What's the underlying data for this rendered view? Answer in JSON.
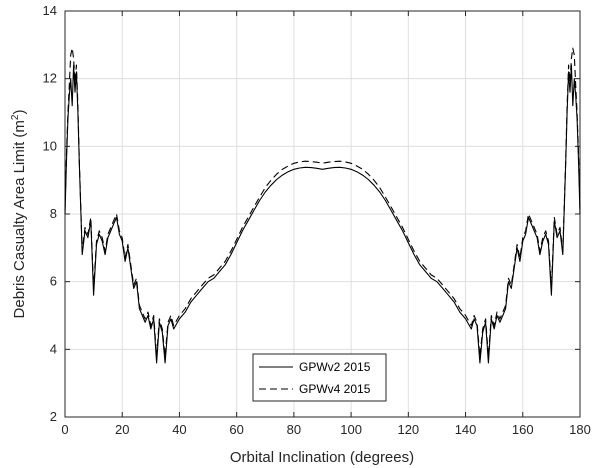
{
  "chart_data": {
    "type": "line",
    "xlabel": "Orbital Inclination (degrees)",
    "ylabel": "Debris Casualty Area Limit (m",
    "ylabel_sup": "2",
    "ylabel_close": ")",
    "xlim": [
      0,
      180
    ],
    "ylim": [
      2,
      14
    ],
    "xticks": [
      "0",
      "20",
      "40",
      "60",
      "80",
      "100",
      "120",
      "140",
      "160",
      "180"
    ],
    "yticks": [
      "2",
      "4",
      "6",
      "8",
      "10",
      "12",
      "14"
    ],
    "grid": true,
    "legend_position": "bottom-center",
    "series": [
      {
        "name": "GPWv2 2015",
        "style": "solid",
        "color": "#000000",
        "x": [
          0,
          0.5,
          1,
          1.5,
          2,
          2.5,
          3,
          3.5,
          4,
          4.5,
          5,
          5.5,
          6,
          7,
          8,
          9,
          10,
          11,
          12,
          13,
          14,
          15,
          16,
          17,
          18,
          19,
          20,
          21,
          22,
          23,
          24,
          25,
          26,
          27,
          28,
          29,
          30,
          31,
          32,
          33,
          34,
          35,
          36,
          37,
          38,
          40,
          42,
          44,
          46,
          48,
          50,
          52,
          54,
          56,
          58,
          60,
          62,
          64,
          66,
          68,
          70,
          72,
          74,
          76,
          78,
          80,
          82,
          84,
          86,
          88,
          90,
          92,
          94,
          96,
          98,
          100,
          102,
          104,
          106,
          108,
          110,
          112,
          114,
          116,
          118,
          120,
          122,
          124,
          126,
          128,
          130,
          132,
          134,
          136,
          138,
          140,
          142,
          143,
          144,
          145,
          146,
          147,
          148,
          149,
          150,
          151,
          152,
          153,
          154,
          155,
          156,
          157,
          158,
          159,
          160,
          161,
          162,
          163,
          164,
          165,
          166,
          167,
          168,
          169,
          170,
          171,
          172,
          173,
          174,
          174.5,
          175,
          175.5,
          176,
          176.5,
          177,
          177.5,
          178,
          178.5,
          179,
          179.5,
          180
        ],
        "y": [
          8.0,
          9.5,
          10.8,
          11.5,
          12.0,
          11.2,
          12.4,
          11.6,
          12.2,
          11.0,
          9.5,
          8.2,
          6.8,
          7.5,
          7.3,
          7.8,
          5.6,
          7.1,
          7.4,
          7.2,
          6.8,
          7.3,
          7.5,
          7.7,
          7.9,
          7.4,
          7.2,
          6.6,
          7.0,
          6.4,
          5.8,
          6.0,
          5.2,
          5.0,
          4.8,
          5.0,
          4.6,
          4.9,
          3.6,
          4.8,
          4.5,
          3.6,
          4.7,
          4.9,
          4.6,
          4.9,
          5.1,
          5.4,
          5.6,
          5.8,
          6.0,
          6.1,
          6.3,
          6.5,
          6.8,
          7.15,
          7.5,
          7.8,
          8.1,
          8.4,
          8.65,
          8.85,
          9.02,
          9.15,
          9.25,
          9.32,
          9.36,
          9.38,
          9.37,
          9.35,
          9.32,
          9.35,
          9.37,
          9.38,
          9.36,
          9.32,
          9.25,
          9.15,
          9.02,
          8.85,
          8.65,
          8.4,
          8.1,
          7.8,
          7.5,
          7.15,
          6.8,
          6.5,
          6.3,
          6.1,
          6.0,
          5.8,
          5.6,
          5.4,
          5.1,
          4.9,
          4.6,
          4.9,
          4.7,
          3.6,
          4.5,
          4.8,
          3.6,
          4.9,
          4.6,
          5.0,
          4.8,
          5.0,
          5.2,
          6.0,
          5.8,
          6.4,
          7.0,
          6.6,
          7.2,
          7.4,
          7.9,
          7.7,
          7.5,
          7.3,
          6.8,
          7.2,
          7.4,
          7.1,
          5.6,
          7.8,
          7.3,
          7.5,
          6.8,
          8.2,
          9.5,
          11.0,
          12.2,
          11.6,
          12.4,
          11.2,
          12.0,
          11.5,
          10.8,
          9.5,
          8.0
        ]
      },
      {
        "name": "GPWv4 2015",
        "style": "dashed",
        "color": "#000000",
        "x": [
          0,
          0.5,
          1,
          1.5,
          2,
          2.5,
          3,
          3.5,
          4,
          4.5,
          5,
          5.5,
          6,
          7,
          8,
          9,
          10,
          11,
          12,
          13,
          14,
          15,
          16,
          17,
          18,
          19,
          20,
          21,
          22,
          23,
          24,
          25,
          26,
          27,
          28,
          29,
          30,
          31,
          32,
          33,
          34,
          35,
          36,
          37,
          38,
          40,
          42,
          44,
          46,
          48,
          50,
          52,
          54,
          56,
          58,
          60,
          62,
          64,
          66,
          68,
          70,
          72,
          74,
          76,
          78,
          80,
          82,
          84,
          86,
          88,
          90,
          92,
          94,
          96,
          98,
          100,
          102,
          104,
          106,
          108,
          110,
          112,
          114,
          116,
          118,
          120,
          122,
          124,
          126,
          128,
          130,
          132,
          134,
          136,
          138,
          140,
          142,
          143,
          144,
          145,
          146,
          147,
          148,
          149,
          150,
          151,
          152,
          153,
          154,
          155,
          156,
          157,
          158,
          159,
          160,
          161,
          162,
          163,
          164,
          165,
          166,
          167,
          168,
          169,
          170,
          171,
          172,
          173,
          174,
          174.5,
          175,
          175.5,
          176,
          176.5,
          177,
          177.5,
          178,
          178.5,
          179,
          179.5,
          180
        ],
        "y": [
          8.1,
          9.7,
          11.0,
          11.8,
          12.7,
          12.9,
          12.6,
          11.9,
          12.4,
          11.2,
          9.6,
          8.3,
          6.9,
          7.6,
          7.4,
          7.9,
          5.8,
          7.2,
          7.5,
          7.3,
          6.9,
          7.4,
          7.6,
          7.8,
          8.0,
          7.5,
          7.3,
          6.7,
          7.1,
          6.5,
          5.9,
          6.1,
          5.3,
          5.1,
          4.9,
          5.1,
          4.7,
          5.0,
          3.8,
          4.9,
          4.6,
          3.8,
          4.8,
          5.0,
          4.7,
          5.0,
          5.2,
          5.5,
          5.7,
          5.9,
          6.1,
          6.2,
          6.4,
          6.6,
          6.9,
          7.25,
          7.6,
          7.9,
          8.2,
          8.5,
          8.78,
          9.0,
          9.18,
          9.32,
          9.42,
          9.5,
          9.54,
          9.56,
          9.55,
          9.53,
          9.5,
          9.53,
          9.55,
          9.56,
          9.54,
          9.5,
          9.42,
          9.32,
          9.18,
          9.0,
          8.78,
          8.5,
          8.2,
          7.9,
          7.6,
          7.25,
          6.9,
          6.6,
          6.4,
          6.2,
          6.1,
          5.9,
          5.7,
          5.5,
          5.2,
          5.0,
          4.7,
          5.0,
          4.8,
          3.8,
          4.6,
          4.9,
          3.8,
          5.0,
          4.7,
          5.1,
          4.9,
          5.1,
          5.3,
          6.1,
          5.9,
          6.5,
          7.1,
          6.7,
          7.3,
          7.5,
          8.0,
          7.8,
          7.6,
          7.4,
          6.9,
          7.3,
          7.5,
          7.2,
          5.8,
          7.9,
          7.4,
          7.6,
          6.9,
          8.3,
          9.6,
          11.2,
          12.4,
          11.9,
          12.6,
          12.9,
          12.7,
          11.8,
          11.0,
          9.7,
          8.1
        ]
      }
    ]
  }
}
